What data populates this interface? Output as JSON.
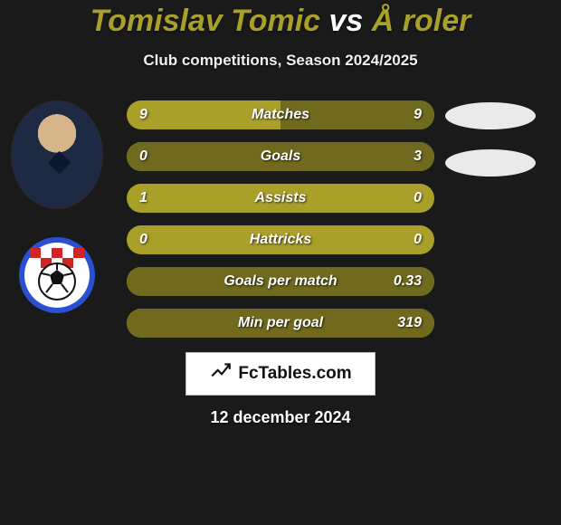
{
  "title": {
    "player1": "Tomislav Tomic",
    "vs": "vs",
    "player2": "Å roler"
  },
  "subtitle": "Club competitions, Season 2024/2025",
  "colors": {
    "accent_olive": "#a9a02a",
    "accent_olive_dark": "#6f6a1d",
    "background": "#1a1a1a",
    "oval": "#eaeaea",
    "text": "#ffffff",
    "watermark_bg": "#ffffff",
    "watermark_fg": "#111111"
  },
  "bars": [
    {
      "label": "Matches",
      "left": "9",
      "right": "9",
      "right_fill_pct": 50
    },
    {
      "label": "Goals",
      "left": "0",
      "right": "3",
      "right_fill_pct": 100
    },
    {
      "label": "Assists",
      "left": "1",
      "right": "0",
      "right_fill_pct": 0
    },
    {
      "label": "Hattricks",
      "left": "0",
      "right": "0",
      "right_fill_pct": 0
    },
    {
      "label": "Goals per match",
      "left": "",
      "right": "0.33",
      "right_fill_pct": 100
    },
    {
      "label": "Min per goal",
      "left": "",
      "right": "319",
      "right_fill_pct": 100
    }
  ],
  "club_badge": {
    "ring_color": "#2a4fcf",
    "checker_red": "#d32424",
    "checker_white": "#ffffff",
    "ball_outline": "#111111"
  },
  "watermark": "FcTables.com",
  "date": "12 december 2024"
}
